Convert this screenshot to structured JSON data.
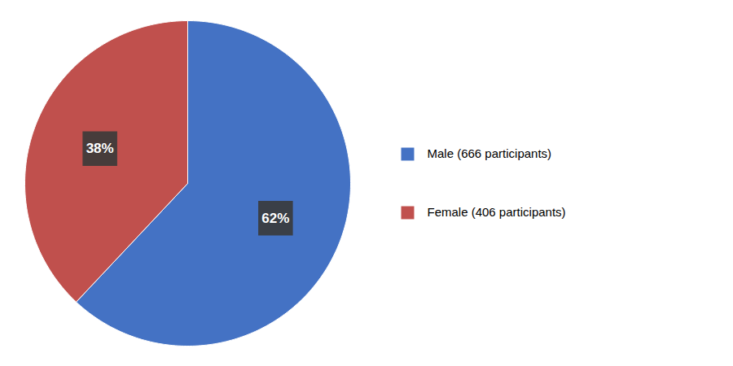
{
  "chart_data": {
    "type": "pie",
    "categories": [
      "Male (666 participants)",
      "Female (406 participants)"
    ],
    "values": [
      62,
      38
    ],
    "value_labels": [
      "62%",
      "38%"
    ],
    "data_labels": true,
    "colors": [
      "#4472C4",
      "#C0504D"
    ],
    "legend": "right"
  }
}
